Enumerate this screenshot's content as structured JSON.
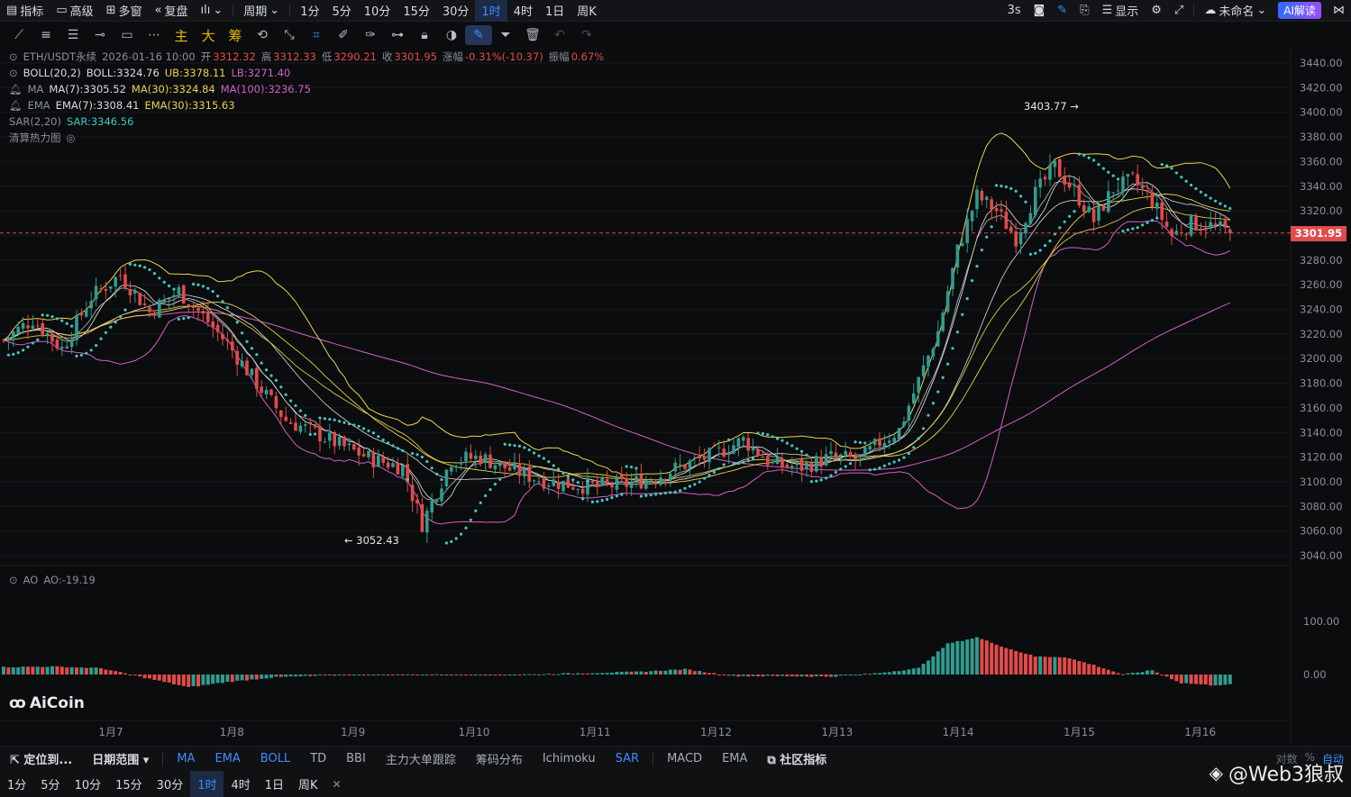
{
  "topbar": {
    "indicators": "指标",
    "advanced": "高级",
    "multi_window": "多窗",
    "replay": "复盘",
    "period": "周期",
    "timeframes": [
      "1分",
      "5分",
      "10分",
      "15分",
      "30分",
      "1时",
      "4时",
      "1日",
      "周K"
    ],
    "active_timeframe": "1时",
    "refresh": "3s",
    "display": "显示",
    "layout_name": "未命名",
    "ai_button": "AI解读"
  },
  "toolbar": {
    "cn_tools": [
      "主",
      "大",
      "筹"
    ]
  },
  "legend": {
    "symbol": "ETH/USDT永续",
    "datetime": "2026-01-16 10:00",
    "open_label": "开",
    "open": "3312.32",
    "high_label": "高",
    "high": "3312.33",
    "low_label": "低",
    "low": "3290.21",
    "close_label": "收",
    "close": "3301.95",
    "change_label": "涨幅",
    "change": "-0.31%(-10.37)",
    "amplitude_label": "振幅",
    "amplitude": "0.67%",
    "boll_name": "BOLL(20,2)",
    "boll_mid": "BOLL:3324.76",
    "boll_ub": "UB:3378.11",
    "boll_lb": "LB:3271.40",
    "ma_name": "MA",
    "ma7": "MA(7):3305.52",
    "ma30": "MA(30):3324.84",
    "ma100": "MA(100):3236.75",
    "ema_name": "EMA",
    "ema7": "EMA(7):3308.41",
    "ema30": "EMA(30):3315.63",
    "sar_name": "SAR(2,20)",
    "sar": "SAR:3346.56",
    "heatmap": "清算热力图"
  },
  "ao": {
    "name": "AO",
    "value": "AO:-19.19",
    "ticks": [
      "100.00",
      "0.00"
    ]
  },
  "watermark": "AiCoin",
  "chart_data": {
    "type": "candlestick",
    "symbol": "ETH/USDT永续",
    "interval": "1h",
    "price_ticks": [
      "3440.00",
      "3420.00",
      "3400.00",
      "3380.00",
      "3360.00",
      "3340.00",
      "3320.00",
      "3300.00",
      "3280.00",
      "3260.00",
      "3240.00",
      "3220.00",
      "3200.00",
      "3180.00",
      "3160.00",
      "3140.00",
      "3120.00",
      "3100.00",
      "3080.00",
      "3060.00",
      "3040.00"
    ],
    "ylim": [
      3035,
      3445
    ],
    "x_ticks": [
      "1月7",
      "1月8",
      "1月9",
      "1月10",
      "1月11",
      "1月12",
      "1月13",
      "1月14",
      "1月15",
      "1月16"
    ],
    "last_price": "3301.95",
    "annotations": {
      "max": "3403.77",
      "min": "3052.43"
    },
    "close_path": [
      [
        0,
        3215
      ],
      [
        6,
        3232
      ],
      [
        12,
        3208
      ],
      [
        18,
        3250
      ],
      [
        24,
        3268
      ],
      [
        30,
        3238
      ],
      [
        36,
        3255
      ],
      [
        42,
        3230
      ],
      [
        46,
        3212
      ],
      [
        52,
        3180
      ],
      [
        58,
        3150
      ],
      [
        64,
        3140
      ],
      [
        70,
        3128
      ],
      [
        76,
        3118
      ],
      [
        82,
        3112
      ],
      [
        86,
        3066
      ],
      [
        92,
        3118
      ],
      [
        98,
        3120
      ],
      [
        104,
        3110
      ],
      [
        110,
        3102
      ],
      [
        116,
        3098
      ],
      [
        122,
        3096
      ],
      [
        128,
        3098
      ],
      [
        134,
        3104
      ],
      [
        140,
        3114
      ],
      [
        146,
        3122
      ],
      [
        152,
        3134
      ],
      [
        158,
        3114
      ],
      [
        164,
        3112
      ],
      [
        170,
        3120
      ],
      [
        176,
        3118
      ],
      [
        180,
        3132
      ],
      [
        184,
        3142
      ],
      [
        188,
        3182
      ],
      [
        192,
        3222
      ],
      [
        196,
        3288
      ],
      [
        200,
        3332
      ],
      [
        204,
        3320
      ],
      [
        208,
        3298
      ],
      [
        212,
        3334
      ],
      [
        216,
        3356
      ],
      [
        220,
        3336
      ],
      [
        224,
        3312
      ],
      [
        228,
        3338
      ],
      [
        232,
        3345
      ],
      [
        236,
        3328
      ],
      [
        240,
        3300
      ],
      [
        244,
        3310
      ],
      [
        248,
        3308
      ],
      [
        252,
        3302
      ]
    ],
    "ao_path": [
      [
        0,
        14
      ],
      [
        10,
        15
      ],
      [
        20,
        12
      ],
      [
        30,
        -8
      ],
      [
        38,
        -24
      ],
      [
        46,
        -14
      ],
      [
        56,
        -5
      ],
      [
        70,
        -1
      ],
      [
        84,
        0
      ],
      [
        100,
        -1
      ],
      [
        116,
        2
      ],
      [
        130,
        5
      ],
      [
        140,
        10
      ],
      [
        150,
        -3
      ],
      [
        160,
        -3
      ],
      [
        170,
        -4
      ],
      [
        180,
        3
      ],
      [
        188,
        12
      ],
      [
        194,
        58
      ],
      [
        200,
        70
      ],
      [
        206,
        50
      ],
      [
        212,
        34
      ],
      [
        218,
        33
      ],
      [
        224,
        18
      ],
      [
        230,
        0
      ],
      [
        236,
        8
      ],
      [
        242,
        -16
      ],
      [
        248,
        -20
      ],
      [
        252,
        -19
      ]
    ]
  },
  "indicator_bar": {
    "locate": "定位到...",
    "date_range": "日期范围",
    "main": [
      "MA",
      "EMA",
      "BOLL",
      "TD",
      "BBI",
      "主力大单跟踪",
      "筹码分布",
      "Ichimoku",
      "SAR"
    ],
    "active_main": [
      "MA",
      "EMA",
      "BOLL",
      "SAR"
    ],
    "sub": [
      "MACD",
      "EMA"
    ],
    "community": "社区指标",
    "log": "对数",
    "percent": "%",
    "auto": "自动"
  },
  "timeframe_bar": [
    "1分",
    "5分",
    "10分",
    "15分",
    "30分",
    "1时",
    "4时",
    "1日",
    "周K"
  ],
  "footer_credit": "@Web3狼叔",
  "colors": {
    "up": "#2f9c8f",
    "down": "#e24b4b",
    "boll": "#e8d44d",
    "ma100": "#d35fc8",
    "sar": "#43c7c2",
    "accent": "#3f8cff"
  }
}
